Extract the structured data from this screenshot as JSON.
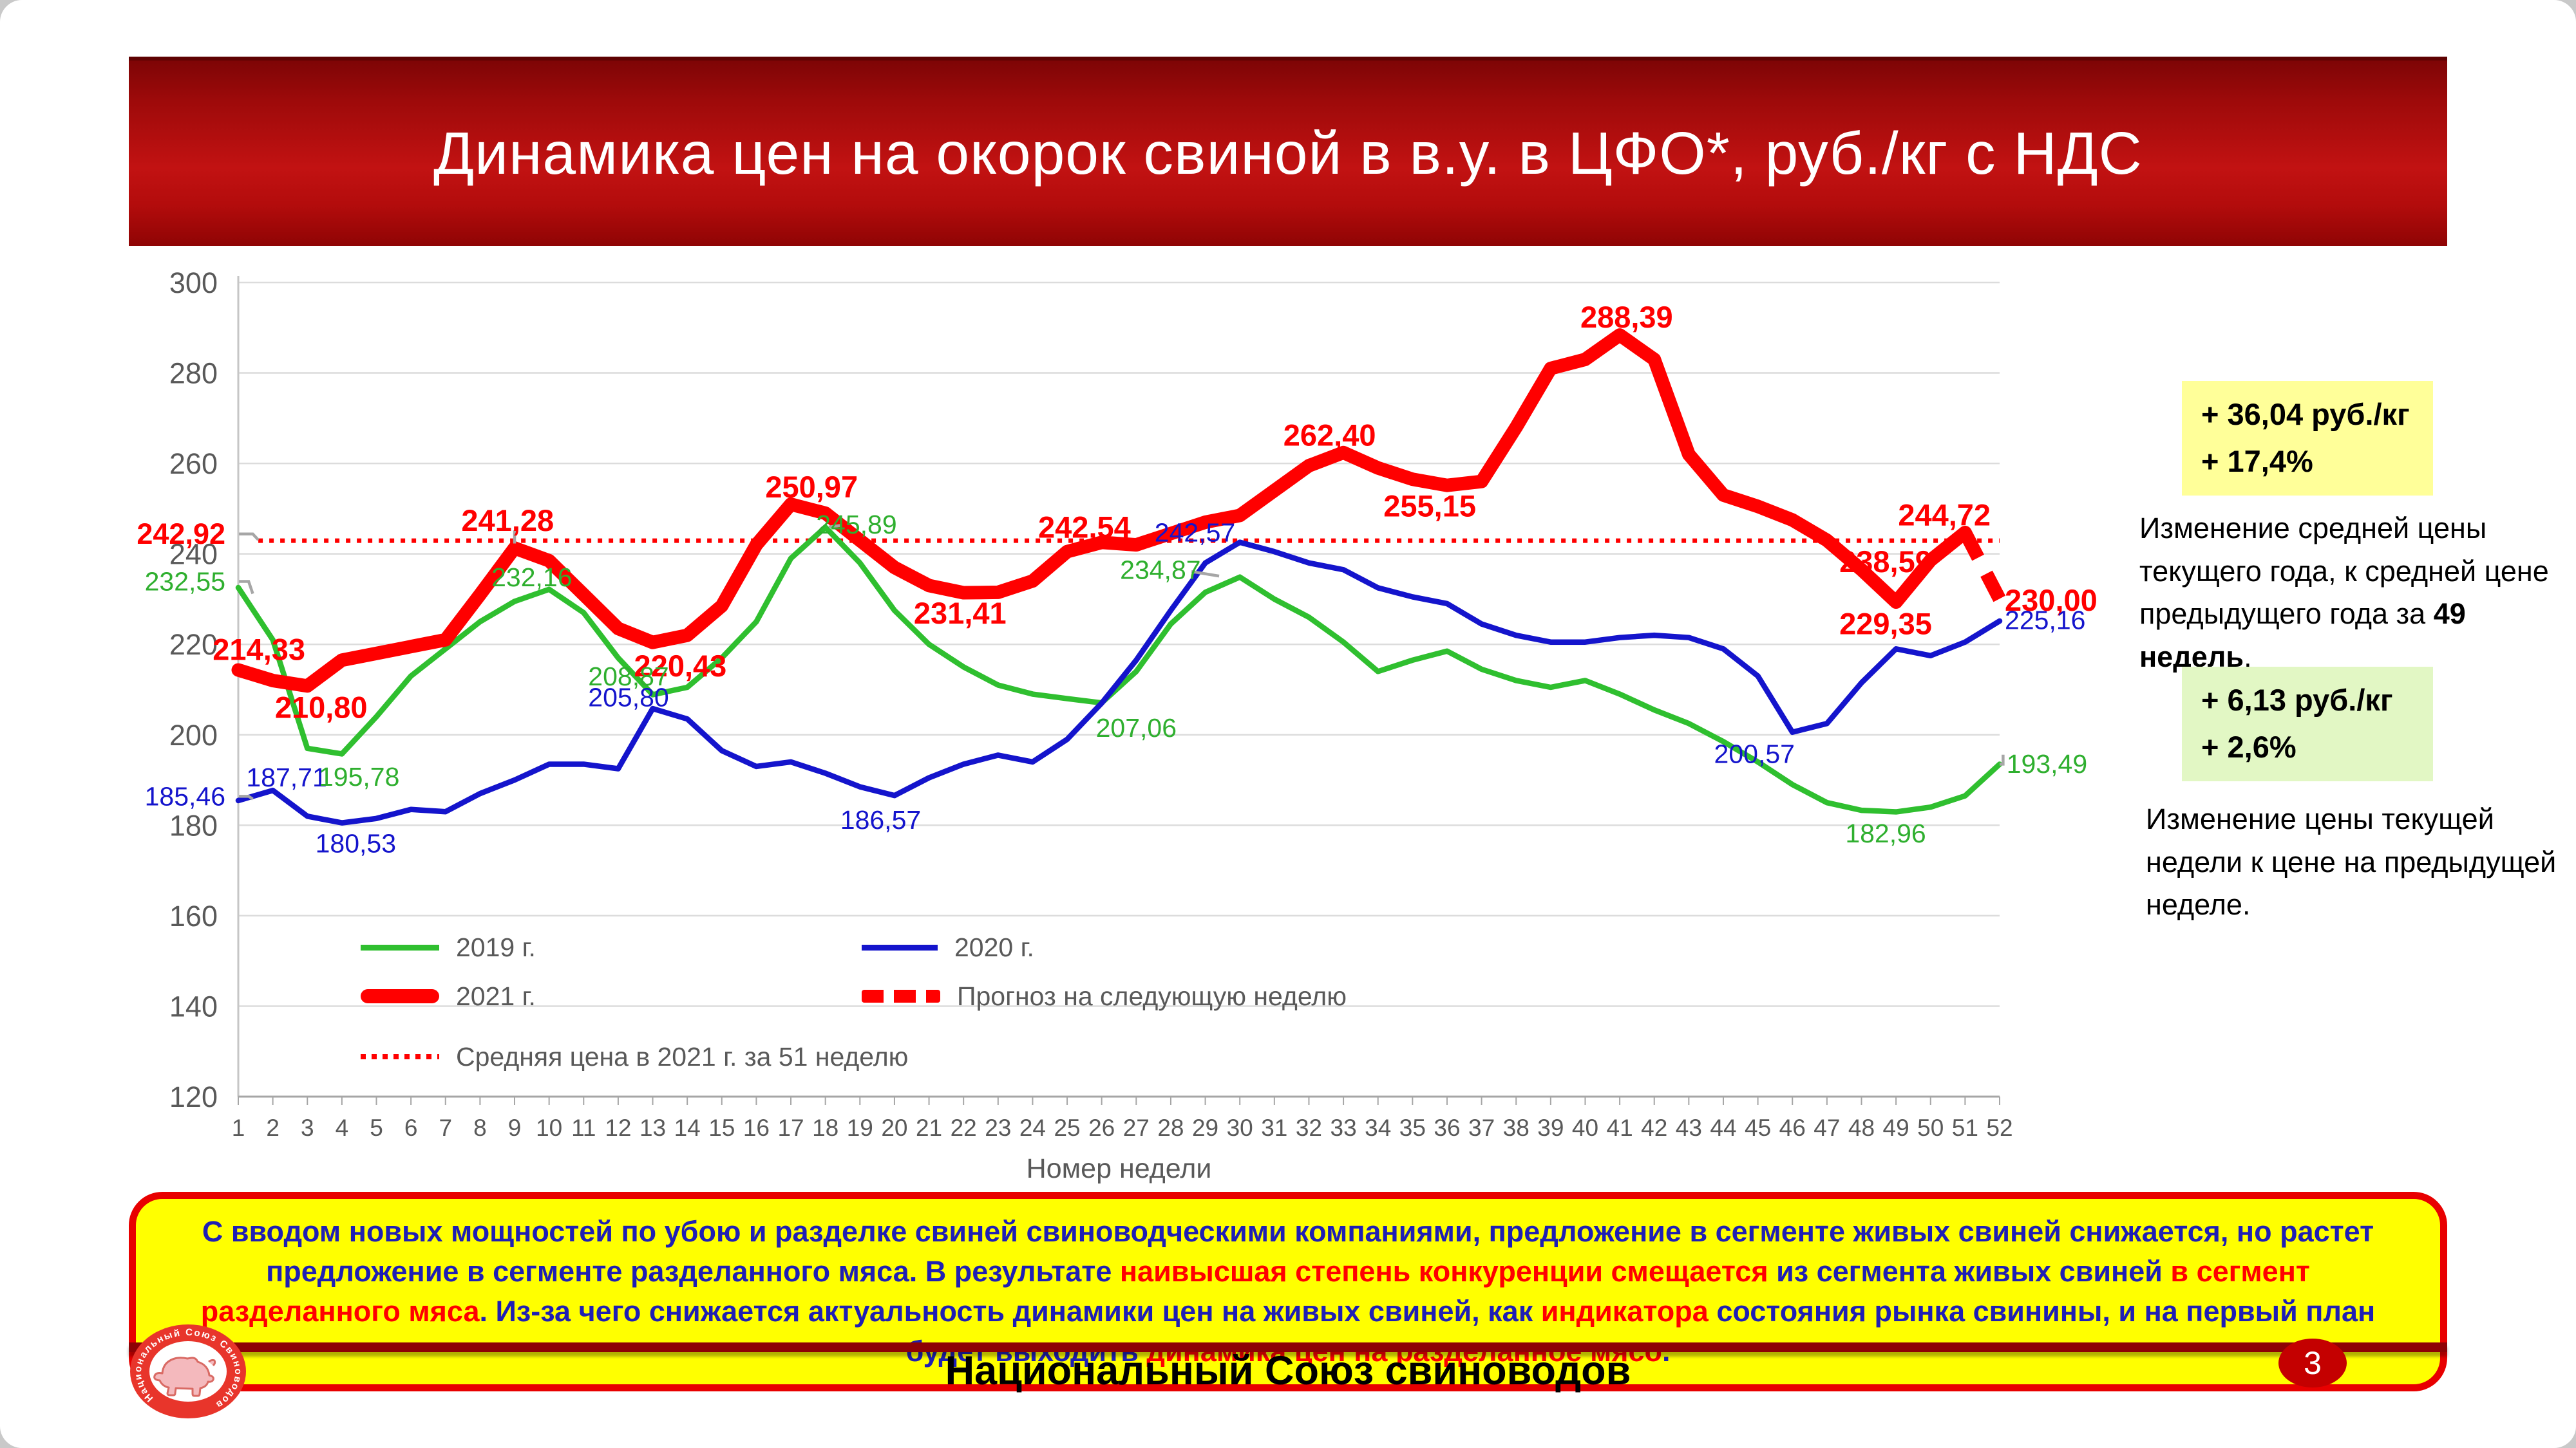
{
  "header": {
    "title": "Динамика цен на окорок свиной в в.у. в ЦФО*, руб./кг с НДС"
  },
  "chart_data": {
    "type": "line",
    "title": "",
    "xlabel": "Номер недели",
    "ylabel": "",
    "ylim": [
      120,
      300
    ],
    "ytick_step": 20,
    "grid": true,
    "legend_position": "inside-bottom-left",
    "x": [
      1,
      2,
      3,
      4,
      5,
      6,
      7,
      8,
      9,
      10,
      11,
      12,
      13,
      14,
      15,
      16,
      17,
      18,
      19,
      20,
      21,
      22,
      23,
      24,
      25,
      26,
      27,
      28,
      29,
      30,
      31,
      32,
      33,
      34,
      35,
      36,
      37,
      38,
      39,
      40,
      41,
      42,
      43,
      44,
      45,
      46,
      47,
      48,
      49,
      50,
      51,
      52
    ],
    "series": [
      {
        "name": "2019 г.",
        "color": "#2FBF2F",
        "style": "solid",
        "values": [
          232.55,
          221,
          197,
          195.78,
          204,
          213,
          219,
          225,
          229.5,
          232.16,
          227,
          217,
          208.87,
          210.5,
          217,
          225,
          239,
          245.89,
          238,
          227.5,
          220,
          215,
          211,
          209,
          208,
          207.06,
          214,
          224.5,
          231.5,
          234.87,
          230,
          226,
          220.5,
          214,
          216.5,
          218.5,
          214.5,
          212,
          210.5,
          212,
          209,
          205.5,
          202.5,
          198.5,
          194,
          189,
          185,
          183.3,
          182.96,
          184,
          186.5,
          193.49
        ]
      },
      {
        "name": "2020 г.",
        "color": "#1414CC",
        "style": "solid",
        "values": [
          185.46,
          187.71,
          182,
          180.53,
          181.5,
          183.5,
          183,
          187,
          190,
          193.5,
          193.5,
          192.5,
          205.8,
          203.5,
          196.5,
          193,
          194,
          191.5,
          188.5,
          186.57,
          190.5,
          193.5,
          195.5,
          194,
          199,
          207,
          216.5,
          227.5,
          238,
          242.57,
          240.5,
          238,
          236.5,
          232.5,
          230.5,
          229,
          224.5,
          222,
          220.5,
          220.5,
          221.5,
          222,
          221.5,
          219,
          213,
          200.57,
          202.5,
          211.5,
          219,
          217.5,
          220.5,
          225.16
        ]
      },
      {
        "name": "2021 г.",
        "color": "#FF0000",
        "style": "solid",
        "values": [
          214.33,
          212,
          210.8,
          216.5,
          218,
          219.5,
          221,
          231,
          241.28,
          238.5,
          231,
          223.5,
          220.43,
          222,
          228.5,
          242,
          250.97,
          249,
          243,
          237,
          233,
          231.41,
          231.5,
          234,
          240.5,
          242.54,
          242,
          244.5,
          247,
          248.5,
          254,
          259.5,
          262.4,
          259,
          256.5,
          255.15,
          256,
          268,
          281,
          283,
          288.39,
          283,
          262,
          253,
          250.5,
          247.5,
          243,
          236.5,
          229.35,
          238.59,
          244.72
        ]
      },
      {
        "name": "Прогноз на следующую неделю",
        "color": "#FF0000",
        "style": "dashed",
        "points": [
          [
            51,
            244.72
          ],
          [
            52,
            230.0
          ]
        ]
      },
      {
        "name": "Средняя цена в 2021 г. за 51 неделю",
        "color": "#FF0000",
        "style": "dotted",
        "value": 242.92
      }
    ],
    "point_labels": [
      {
        "text": "214,33",
        "week": 1.6,
        "value": 218.9,
        "color": "red",
        "bold": true
      },
      {
        "text": "210,80",
        "week": 3.4,
        "value": 206.1,
        "color": "red",
        "bold": true
      },
      {
        "text": "241,28",
        "week": 8.8,
        "value": 247.4,
        "color": "red",
        "bold": true,
        "leader": [
          [
            9,
            245.2
          ],
          [
            9,
            242.3
          ]
        ]
      },
      {
        "text": "220,43",
        "week": 13.8,
        "value": 215.3,
        "color": "red",
        "bold": true
      },
      {
        "text": "250,97",
        "week": 17.6,
        "value": 254.8,
        "color": "red",
        "bold": true
      },
      {
        "text": "231,41",
        "week": 21.9,
        "value": 226.9,
        "color": "red",
        "bold": true
      },
      {
        "text": "242,54",
        "week": 25.5,
        "value": 245.9,
        "color": "red",
        "bold": true
      },
      {
        "text": "262,40",
        "week": 32.6,
        "value": 266.3,
        "color": "red",
        "bold": true
      },
      {
        "text": "255,15",
        "week": 35.5,
        "value": 250.6,
        "color": "red",
        "bold": true
      },
      {
        "text": "288,39",
        "week": 41.2,
        "value": 292.4,
        "color": "red",
        "bold": true
      },
      {
        "text": "238,59",
        "week": 48.7,
        "value": 238.3,
        "color": "red",
        "bold": true
      },
      {
        "text": "229,35",
        "week": 48.7,
        "value": 224.6,
        "color": "red",
        "bold": true
      },
      {
        "text": "244,72",
        "week": 50.4,
        "value": 248.6,
        "color": "red",
        "bold": true
      },
      {
        "text": "230,00",
        "week": 52.15,
        "value": 229.8,
        "color": "red",
        "bold": true,
        "anchor": "start"
      },
      {
        "text": "187,71",
        "week": 2.4,
        "value": 190.6,
        "color": "blue"
      },
      {
        "text": "180,53",
        "week": 4.4,
        "value": 176.0,
        "color": "blue"
      },
      {
        "text": "205,80",
        "week": 12.3,
        "value": 208.3,
        "color": "blue"
      },
      {
        "text": "186,57",
        "week": 19.6,
        "value": 181.2,
        "color": "blue"
      },
      {
        "text": "242,57",
        "week": 28.7,
        "value": 244.7,
        "color": "blue"
      },
      {
        "text": "200,57",
        "week": 44.9,
        "value": 195.8,
        "color": "blue"
      },
      {
        "text": "225,16",
        "week": 52.15,
        "value": 225.4,
        "color": "blue",
        "anchor": "start"
      },
      {
        "text": "195,78",
        "week": 4.5,
        "value": 190.7,
        "color": "green"
      },
      {
        "text": "232,16",
        "week": 9.5,
        "value": 234.8,
        "color": "green"
      },
      {
        "text": "208,87",
        "week": 12.3,
        "value": 212.9,
        "color": "green"
      },
      {
        "text": "245,89",
        "week": 18.9,
        "value": 246.5,
        "color": "green",
        "leader": [
          [
            18.45,
            246.3
          ],
          [
            18.1,
            245.95
          ]
        ]
      },
      {
        "text": "207,06",
        "week": 27.0,
        "value": 201.5,
        "color": "green"
      },
      {
        "text": "234,87",
        "week": 27.7,
        "value": 236.5,
        "color": "green",
        "leader": [
          [
            28.6,
            236.1
          ],
          [
            29.4,
            235.1
          ]
        ]
      },
      {
        "text": "182,96",
        "week": 48.7,
        "value": 178.2,
        "color": "green"
      },
      {
        "text": "193,49",
        "week": 52.2,
        "value": 193.6,
        "color": "green",
        "anchor": "start",
        "leader": [
          [
            52.1,
            195.6
          ],
          [
            52.1,
            193.5
          ],
          [
            52.0,
            193.49
          ]
        ]
      }
    ],
    "edge_labels": [
      {
        "text": "242,92",
        "value": 244.4,
        "color": "red",
        "bold": true,
        "leader": [
          [
            1.02,
            244.4
          ],
          [
            1.42,
            244.4
          ],
          [
            1.58,
            243.1
          ]
        ]
      },
      {
        "text": "232,55",
        "value": 233.9,
        "color": "green",
        "leader": [
          [
            1.02,
            233.9
          ],
          [
            1.3,
            233.9
          ],
          [
            1.42,
            231.2
          ]
        ]
      },
      {
        "text": "185,46",
        "value": 186.4,
        "color": "blue",
        "leader": [
          [
            1.02,
            186.4
          ],
          [
            1.3,
            186.4
          ],
          [
            1.42,
            185.8
          ]
        ]
      }
    ]
  },
  "annotations": {
    "year_change_box": {
      "line1": "+ 36,04  руб./кг",
      "line2": "+ 17,4%"
    },
    "year_change_note": {
      "before": "Изменение средней цены текущего года, к средней цене предыдущего года за ",
      "bold": "49 недель",
      "after": "."
    },
    "week_change_box": {
      "line1": "+ 6,13  руб./кг",
      "line2": "+ 2,6%"
    },
    "week_change_note": "Изменение цены текущей недели к цене на предыдущей неделе."
  },
  "callout": {
    "segments": [
      {
        "text": "С вводом новых мощностей по убою и разделке свиней свиноводческими компаниями, предложение в сегменте живых свиней снижается, но растет предложение в сегменте разделанного мяса.  В результате ",
        "highlight": false
      },
      {
        "text": "наивысшая степень конкуренции смещается",
        "highlight": true
      },
      {
        "text": " из сегмента живых свиней ",
        "highlight": false
      },
      {
        "text": "в сегмент разделанного мяса",
        "highlight": true
      },
      {
        "text": ". Из-за чего снижается актуальность динамики цен на живых свиней, как ",
        "highlight": false
      },
      {
        "text": "индикатора",
        "highlight": true
      },
      {
        "text": " состояния рынка свинины, и на первый план будет выходить ",
        "highlight": false
      },
      {
        "text": "динамика цен на разделанное мясо",
        "highlight": true
      },
      {
        "text": ".",
        "highlight": false
      }
    ]
  },
  "footer": {
    "organization": "Национальный Союз свиноводов",
    "logo_text": "Национальный Союз Свиноводов",
    "page": "3"
  }
}
